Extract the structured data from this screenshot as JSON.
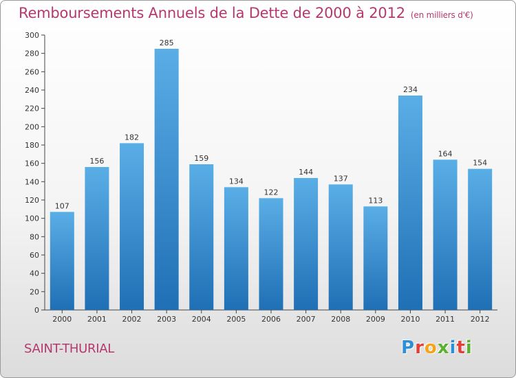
{
  "header": {
    "title": "Remboursements Annuels de la Dette de 2000 à 2012",
    "unit": "(en milliers d'€)"
  },
  "footer": {
    "commune": "SAINT-THURIAL",
    "logo_letters": [
      "P",
      "r",
      "o",
      "x",
      "i",
      "t",
      "i"
    ],
    "logo_colors": [
      "#2e8fd6",
      "#e2413a",
      "#f5a31a",
      "#5cb030",
      "#2e8fd6",
      "#e2413a",
      "#5cb030"
    ]
  },
  "colors": {
    "bar_top": "#5aaee6",
    "bar_bottom": "#1f6fb5",
    "title": "#b5386e",
    "axis": "#444444"
  },
  "chart_data": {
    "type": "bar",
    "categories": [
      "2000",
      "2001",
      "2002",
      "2003",
      "2004",
      "2005",
      "2006",
      "2007",
      "2008",
      "2009",
      "2010",
      "2011",
      "2012"
    ],
    "values": [
      107,
      156,
      182,
      285,
      159,
      134,
      122,
      144,
      137,
      113,
      234,
      164,
      154
    ],
    "yticks": [
      0,
      20,
      40,
      60,
      80,
      100,
      120,
      140,
      160,
      180,
      200,
      220,
      240,
      260,
      280,
      300
    ],
    "ylim": [
      0,
      300
    ],
    "grid": false
  }
}
